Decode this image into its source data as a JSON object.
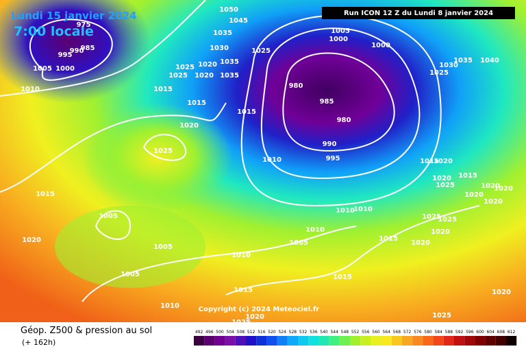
{
  "header": {
    "date": "Lundi 15 janvier 2024",
    "time": "7:00 locale",
    "run": "Run ICON 12 Z du Lundi 8 janvier 2024"
  },
  "isobars": [
    "975",
    "995",
    "990",
    "985",
    "1005",
    "1000",
    "1010",
    "1050",
    "1045",
    "1035",
    "1030",
    "1025",
    "1025",
    "1020",
    "1020",
    "1035",
    "1035",
    "1025",
    "1015",
    "1015",
    "1015",
    "1020",
    "1025",
    "1015",
    "1005",
    "1020",
    "1005",
    "1005",
    "1010",
    "1010",
    "980",
    "985",
    "980",
    "990",
    "995",
    "1005",
    "1000",
    "1000",
    "1025",
    "1030",
    "1035",
    "1040",
    "1020",
    "1015",
    "1020",
    "1025",
    "1015",
    "1020",
    "1020",
    "1020",
    "1020",
    "1025",
    "1025",
    "1020",
    "1020",
    "1010",
    "1010",
    "1010",
    "1005",
    "1015",
    "1010",
    "1015",
    "1015",
    "1020",
    "1025",
    "1025",
    "1020"
  ],
  "copyright": "Copyright (c) 2024 Meteociel.fr",
  "footer": {
    "title": "Géop. Z500 & pression au sol",
    "lead": "(+ 162h)"
  },
  "legend": {
    "values": [
      492,
      496,
      500,
      504,
      508,
      512,
      516,
      520,
      524,
      528,
      532,
      536,
      540,
      544,
      548,
      552,
      556,
      560,
      564,
      568,
      572,
      576,
      580,
      584,
      588,
      592,
      596,
      600,
      604,
      608,
      612
    ],
    "colors": [
      "#3a0040",
      "#5a0070",
      "#700090",
      "#7a10a8",
      "#5010b8",
      "#2010c8",
      "#1030d8",
      "#1050f0",
      "#1080f8",
      "#10a8f8",
      "#10c8f0",
      "#10e0e0",
      "#20e8b0",
      "#40f080",
      "#70f050",
      "#a0f030",
      "#c8f020",
      "#e8f020",
      "#f8e820",
      "#f8c820",
      "#f8a820",
      "#f88820",
      "#f86818",
      "#f04818",
      "#e02818",
      "#c01010",
      "#a00808",
      "#800000",
      "#600000",
      "#400000",
      "#100000"
    ]
  }
}
